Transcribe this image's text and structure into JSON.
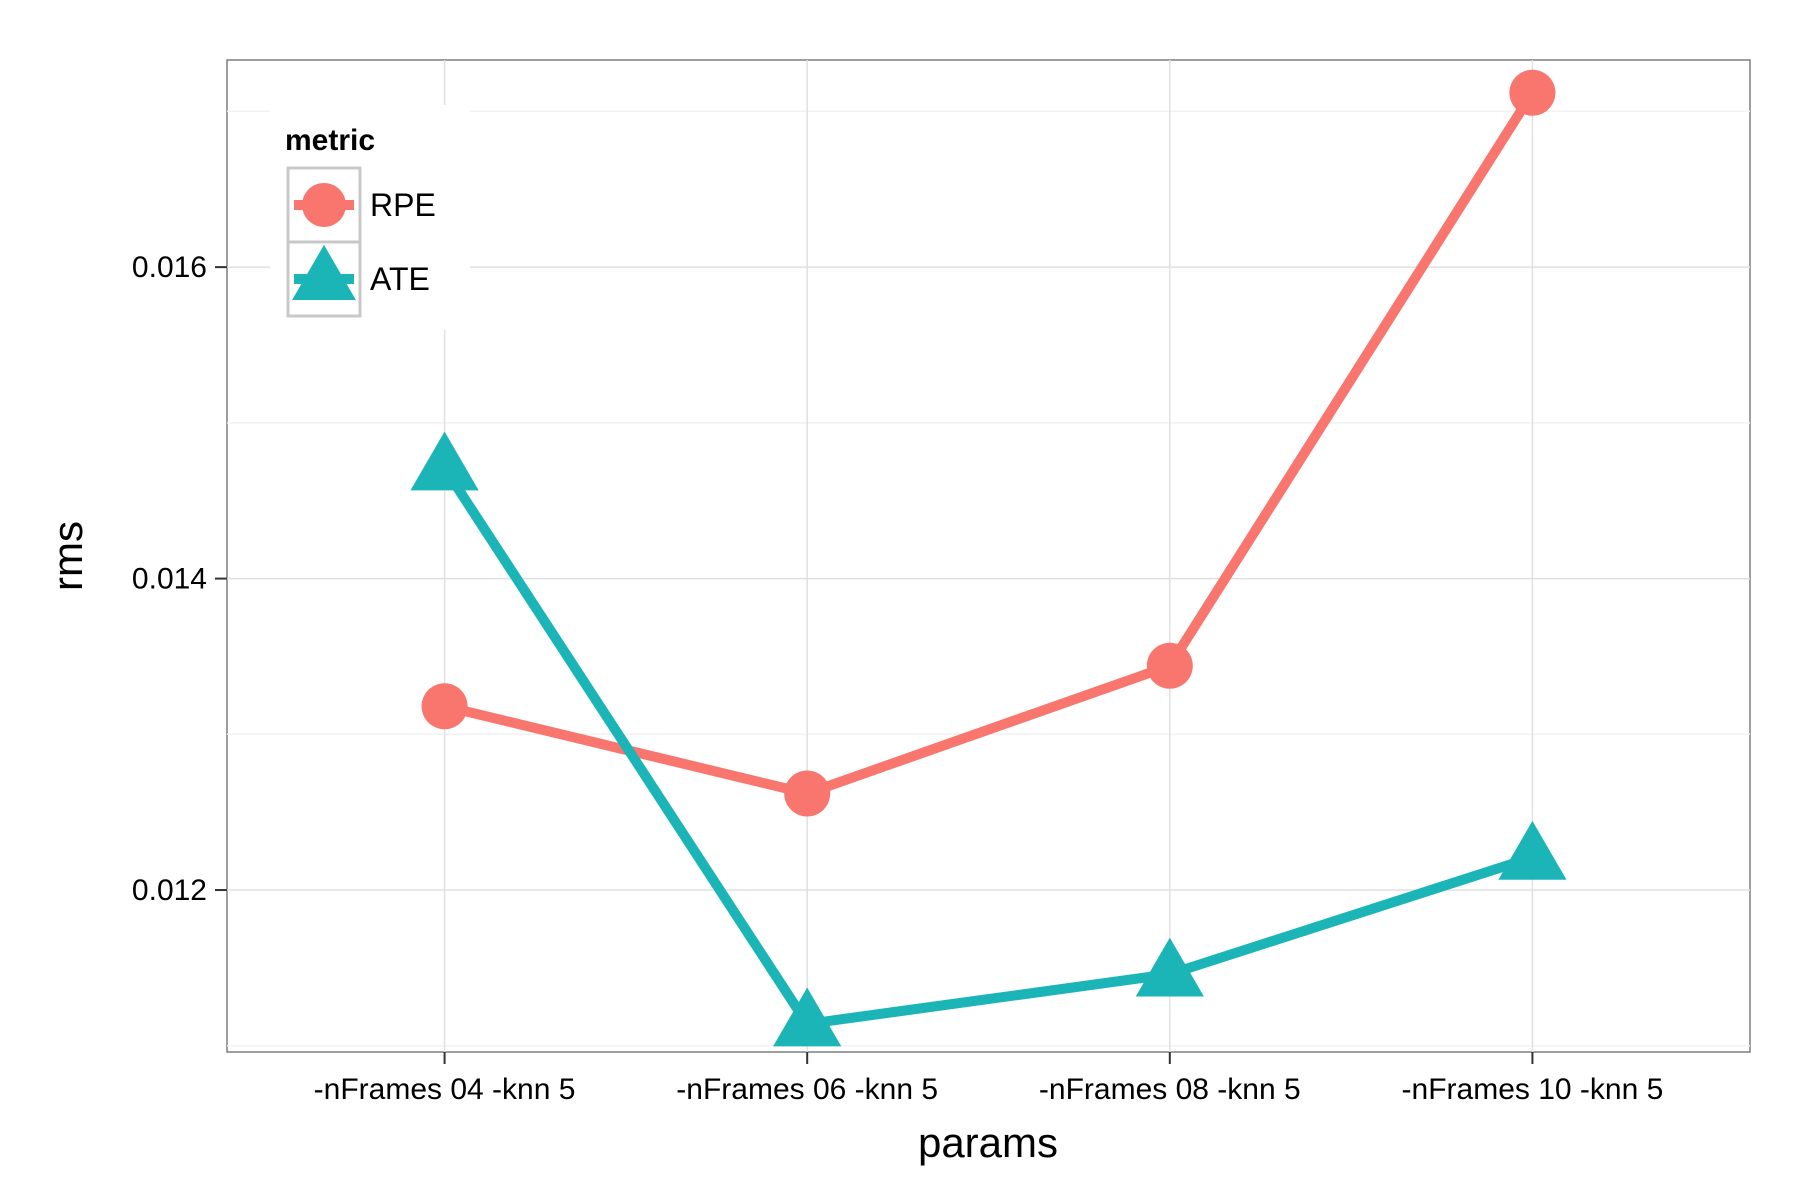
{
  "chart_data": {
    "type": "line",
    "title": "",
    "xlabel": "params",
    "ylabel": "rms",
    "categories": [
      "-nFrames 04 -knn 5",
      "-nFrames 06 -knn 5",
      "-nFrames 08 -knn 5",
      "-nFrames 10 -knn 5"
    ],
    "series": [
      {
        "name": "RPE",
        "marker": "circle",
        "color": "#F8766D",
        "values": [
          0.01318,
          0.01262,
          0.01344,
          0.01712
        ]
      },
      {
        "name": "ATE",
        "marker": "triangle",
        "color": "#1BB5B8",
        "values": [
          0.01471,
          0.01114,
          0.01146,
          0.01221
        ]
      }
    ],
    "ylim": [
      0.01096,
      0.01733
    ],
    "yticks": [
      0.012,
      0.014,
      0.016
    ],
    "ytick_labels": [
      "0.012",
      "0.014",
      "0.016"
    ],
    "grid": true,
    "legend": {
      "title": "metric",
      "position": "top-left-inside"
    }
  }
}
